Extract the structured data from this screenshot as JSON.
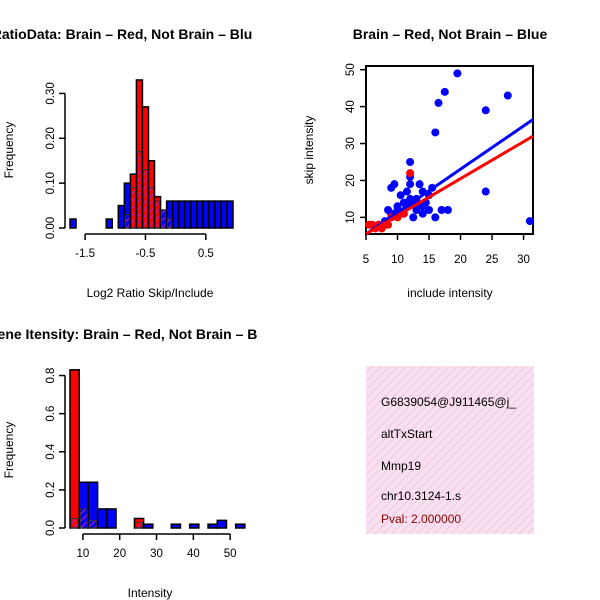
{
  "chart_data": [
    {
      "type": "histogram",
      "title": "RatioData: Brain – Red, Not Brain – Blu",
      "xlabel": "Log2 Ratio Skip/Include",
      "ylabel": "Frequency",
      "xlim": [
        -1.75,
        0.95
      ],
      "ylim": [
        0,
        0.35
      ],
      "x_ticks": [
        -1.5,
        -0.5,
        0.5
      ],
      "x_tick_labels": [
        "-1.5",
        "-0.5",
        "0.5"
      ],
      "y_ticks": [
        0.0,
        0.1,
        0.2,
        0.3
      ],
      "y_tick_labels": [
        "0.00",
        "0.10",
        "0.20",
        "0.30"
      ],
      "bin_start": -1.75,
      "bin_width": 0.1,
      "series": [
        {
          "name": "Not Brain",
          "color": "#0000ff",
          "values": [
            0.02,
            0,
            0,
            0,
            0,
            0,
            0.02,
            0,
            0.05,
            0.1,
            0.09,
            0.17,
            0.13,
            0.09,
            0.06,
            0.04,
            0.06,
            0.06,
            0.06,
            0.06,
            0.06,
            0.06,
            0.06,
            0.06,
            0.06,
            0.06,
            0.06
          ]
        },
        {
          "name": "Brain",
          "color": "#ff0000",
          "values": [
            0,
            0,
            0,
            0,
            0,
            0,
            0,
            0,
            0,
            0.03,
            0.12,
            0.33,
            0.27,
            0.15,
            0.07,
            0.04,
            0.02,
            0,
            0,
            0,
            0,
            0,
            0,
            0,
            0,
            0,
            0
          ]
        }
      ]
    },
    {
      "type": "scatter",
      "title": "Brain – Red, Not Brain – Blue",
      "xlabel": "include intensity",
      "ylabel": "skip intensity",
      "xlim": [
        5,
        31.5
      ],
      "ylim": [
        5.5,
        51
      ],
      "x_ticks": [
        5,
        10,
        15,
        20,
        25,
        30
      ],
      "x_tick_labels": [
        "5",
        "10",
        "15",
        "20",
        "25",
        "30"
      ],
      "y_ticks": [
        10,
        20,
        30,
        40,
        50
      ],
      "y_tick_labels": [
        "10",
        "20",
        "30",
        "40",
        "50"
      ],
      "series": [
        {
          "name": "Not Brain",
          "color": "#0000ff",
          "points": [
            [
              7,
              8
            ],
            [
              8,
              9
            ],
            [
              8.5,
              12
            ],
            [
              9,
              18
            ],
            [
              9.5,
              19
            ],
            [
              10,
              12
            ],
            [
              10.5,
              16
            ],
            [
              11,
              11
            ],
            [
              11.5,
              13
            ],
            [
              12,
              25
            ],
            [
              12,
              21
            ],
            [
              12,
              15
            ],
            [
              12.5,
              14
            ],
            [
              13,
              12
            ],
            [
              13.5,
              19
            ],
            [
              14,
              17
            ],
            [
              14.5,
              14
            ],
            [
              15,
              12
            ],
            [
              15,
              16
            ],
            [
              15.5,
              18
            ],
            [
              16,
              33
            ],
            [
              16.5,
              41
            ],
            [
              17.5,
              44
            ],
            [
              19.5,
              49
            ],
            [
              24,
              39
            ],
            [
              24,
              17
            ],
            [
              27.5,
              43
            ],
            [
              31,
              9
            ],
            [
              16,
              10
            ],
            [
              17,
              12
            ],
            [
              18,
              12
            ],
            [
              13,
              13
            ],
            [
              14,
              11
            ],
            [
              9,
              11
            ],
            [
              10,
              13
            ],
            [
              11,
              14
            ],
            [
              12.5,
              10
            ],
            [
              11.5,
              17
            ],
            [
              12,
              19
            ],
            [
              13,
              15
            ],
            [
              14,
              13
            ]
          ],
          "fit": [
            [
              5,
              5.5
            ],
            [
              31.5,
              36.5
            ]
          ]
        },
        {
          "name": "Brain",
          "color": "#ff0000",
          "points": [
            [
              5.5,
              8
            ],
            [
              6,
              8
            ],
            [
              6.5,
              7
            ],
            [
              7,
              8
            ],
            [
              7.5,
              7
            ],
            [
              8,
              8
            ],
            [
              8.5,
              8
            ],
            [
              9,
              10
            ],
            [
              10,
              10
            ],
            [
              11,
              11
            ],
            [
              12,
              22
            ]
          ],
          "fit": [
            [
              5,
              5.5
            ],
            [
              31.5,
              32
            ]
          ]
        }
      ]
    },
    {
      "type": "histogram",
      "title": "Gene Itensity: Brain – Red, Not Brain – B",
      "xlabel": "Intensity",
      "ylabel": "Frequency",
      "xlim": [
        6.5,
        50.5
      ],
      "ylim": [
        0,
        0.85
      ],
      "x_ticks": [
        10,
        20,
        30,
        40,
        50
      ],
      "x_tick_labels": [
        "10",
        "20",
        "30",
        "40",
        "50"
      ],
      "y_ticks": [
        0.0,
        0.2,
        0.4,
        0.6,
        0.8
      ],
      "y_tick_labels": [
        "0.0",
        "0.2",
        "0.4",
        "0.6",
        "0.8"
      ],
      "bin_start": 6.5,
      "bin_width": 2.5,
      "series": [
        {
          "name": "Not Brain",
          "color": "#0000ff",
          "values": [
            0.05,
            0.24,
            0.24,
            0.1,
            0.1,
            0.0,
            0.0,
            0.03,
            0.02,
            0.0,
            0.0,
            0.02,
            0.0,
            0.02,
            0.0,
            0.02,
            0.04,
            0.0,
            0.02
          ]
        },
        {
          "name": "Brain",
          "color": "#ff0000",
          "values": [
            0.83,
            0.1,
            0.04,
            0.0,
            0.0,
            0.0,
            0.0,
            0.05,
            0.0,
            0.0,
            0.0,
            0.0,
            0.0,
            0.0,
            0.0,
            0.0,
            0.0,
            0.0,
            0.0
          ]
        }
      ]
    }
  ],
  "info_box": {
    "event_id": "G6839054@J911465@j_",
    "event_type": "altTxStart",
    "gene": "Mmp19",
    "probe": "chr10.3124-1.s",
    "pval": "Pval: 2.000000",
    "pval_color": "#8b0000",
    "background": "#f7d8ec"
  }
}
